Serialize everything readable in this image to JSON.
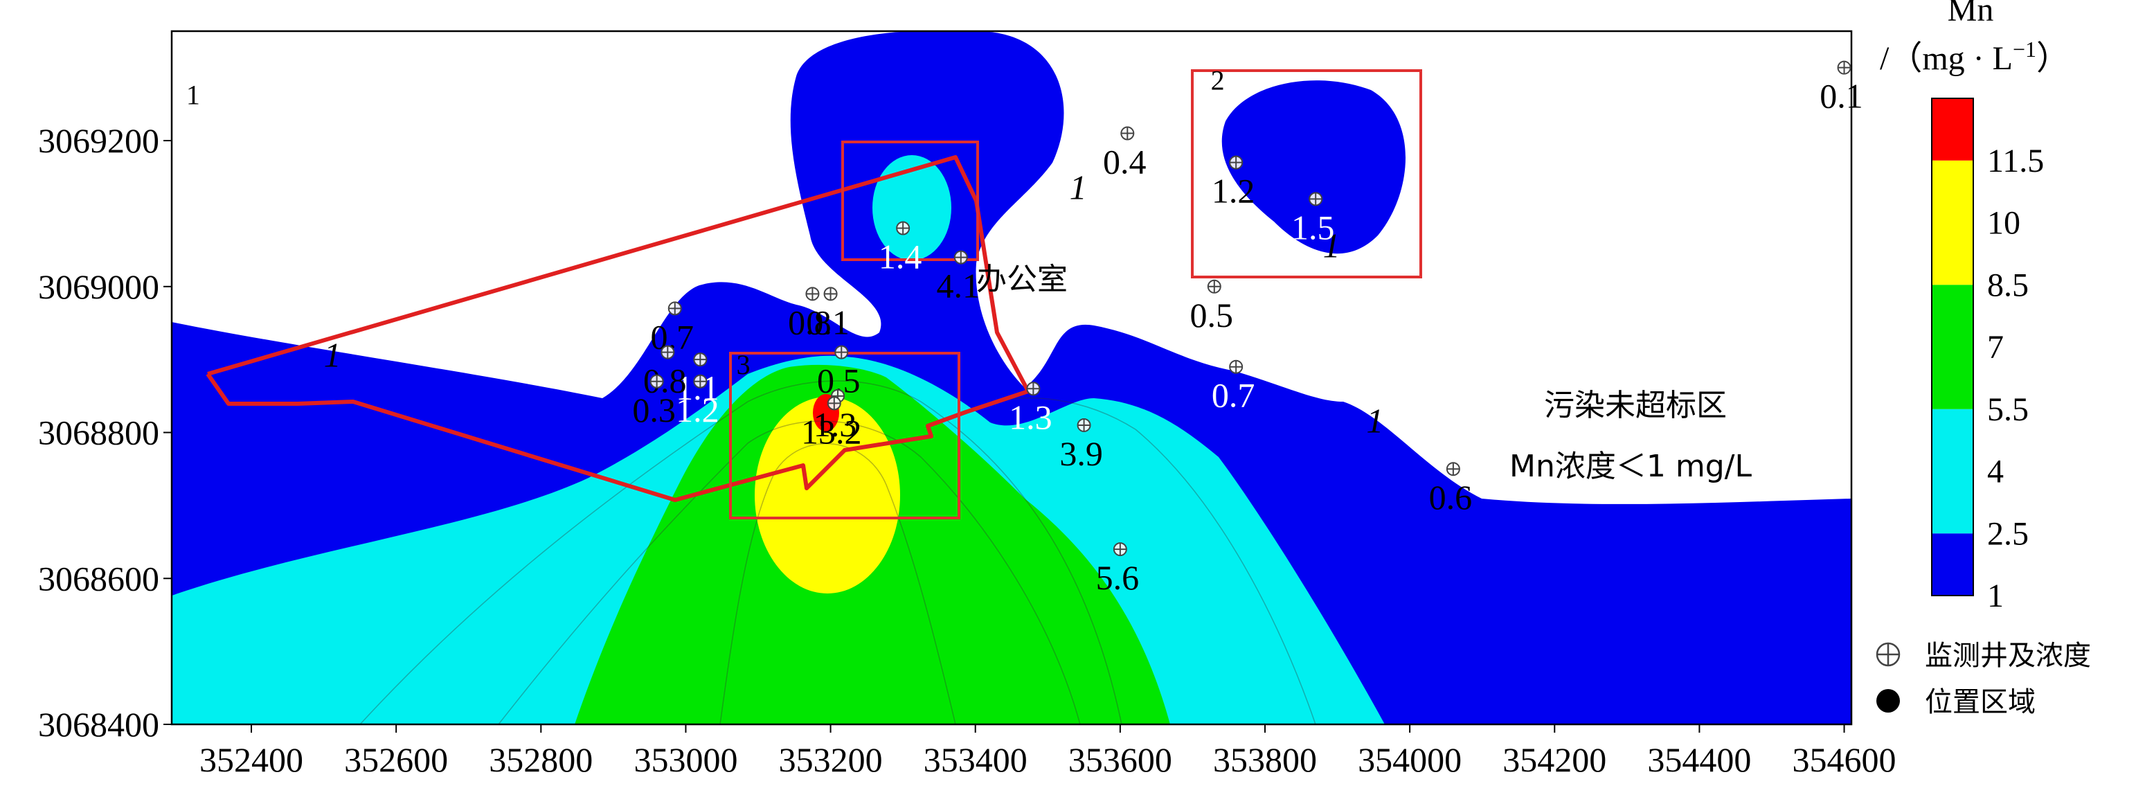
{
  "chart_data": {
    "type": "contour",
    "xlim": [
      352290,
      354610
    ],
    "ylim": [
      3068400,
      3069350
    ],
    "xticks": [
      "352400",
      "352600",
      "352800",
      "353000",
      "353200",
      "353400",
      "353600",
      "353800",
      "354000",
      "354200",
      "354400",
      "354600"
    ],
    "yticks": [
      "3068400",
      "3068600",
      "3068800",
      "3069000",
      "3069200"
    ],
    "xtick_values": [
      352400,
      352600,
      352800,
      353000,
      353200,
      353400,
      353600,
      353800,
      354000,
      354200,
      354400,
      354600
    ],
    "ytick_values": [
      3068400,
      3068600,
      3068800,
      3069000,
      3069200
    ],
    "colorbar": {
      "title_line1": "Mn",
      "title_line2": "/（mg · L",
      "title_sup": "−1",
      "title_end": "）",
      "levels": [
        "1",
        "2.5",
        "4",
        "5.5",
        "7",
        "8.5",
        "10",
        "11.5"
      ],
      "colors": [
        "#0000f0",
        "#00f0f0",
        "#00e600",
        "#ffff00",
        "#ff0000"
      ]
    },
    "wells": [
      {
        "x": 354600,
        "y": 3069300,
        "value": "0.1",
        "color": "#000000"
      },
      {
        "x": 353610,
        "y": 3069210,
        "value": "0.4",
        "color": "#000000"
      },
      {
        "x": 353760,
        "y": 3069170,
        "value": "1.2",
        "color": "#000000"
      },
      {
        "x": 353870,
        "y": 3069120,
        "value": "1.5",
        "color": "#ffffff"
      },
      {
        "x": 353300,
        "y": 3069080,
        "value": "1.4",
        "color": "#ffffff"
      },
      {
        "x": 353380,
        "y": 3069040,
        "value": "4.1",
        "color": "#000000"
      },
      {
        "x": 353175,
        "y": 3068990,
        "value": "0.8",
        "color": "#000000"
      },
      {
        "x": 353200,
        "y": 3068990,
        "value": "0.1",
        "color": "#000000"
      },
      {
        "x": 352985,
        "y": 3068970,
        "value": "0.7",
        "color": "#000000"
      },
      {
        "x": 353020,
        "y": 3068900,
        "value": "1.1",
        "color": "#ffffff"
      },
      {
        "x": 352975,
        "y": 3068910,
        "value": "0.8",
        "color": "#000000"
      },
      {
        "x": 353215,
        "y": 3068910,
        "value": "0.5",
        "color": "#000000"
      },
      {
        "x": 352960,
        "y": 3068870,
        "value": "0.3",
        "color": "#000000"
      },
      {
        "x": 353020,
        "y": 3068870,
        "value": "1.2",
        "color": "#ffffff"
      },
      {
        "x": 353210,
        "y": 3068850,
        "value": "1.3",
        "color": "#000000"
      },
      {
        "x": 353205,
        "y": 3068840,
        "value": "13.2",
        "color": "#000000"
      },
      {
        "x": 353480,
        "y": 3068860,
        "value": "1.3",
        "color": "#ffffff"
      },
      {
        "x": 353550,
        "y": 3068810,
        "value": "3.9",
        "color": "#000000"
      },
      {
        "x": 353730,
        "y": 3069000,
        "value": "0.5",
        "color": "#000000"
      },
      {
        "x": 353760,
        "y": 3068890,
        "value": "0.7",
        "color": "#ffffff"
      },
      {
        "x": 354060,
        "y": 3068750,
        "value": "0.6",
        "color": "#000000"
      },
      {
        "x": 353600,
        "y": 3068640,
        "value": "5.6",
        "color": "#000000"
      }
    ],
    "region_labels": [
      {
        "x": 352310,
        "y": 3069250,
        "text": "1"
      },
      {
        "x": 353725,
        "y": 3069270,
        "text": "2"
      },
      {
        "x": 353070,
        "y": 3068880,
        "text": "3"
      }
    ],
    "contour_line_labels": [
      {
        "x": 352500,
        "y": 3068890,
        "text": "1"
      },
      {
        "x": 353530,
        "y": 3069120,
        "text": "1"
      },
      {
        "x": 353880,
        "y": 3069040,
        "text": "1"
      },
      {
        "x": 353940,
        "y": 3068800,
        "text": "1"
      }
    ],
    "annotations": {
      "office": "办公室",
      "zone_line1": "污染未超标区",
      "zone_line2": "Mn浓度＜1 mg/L"
    },
    "legend": {
      "well": "监测井及浓度",
      "location": "位置区域"
    }
  }
}
